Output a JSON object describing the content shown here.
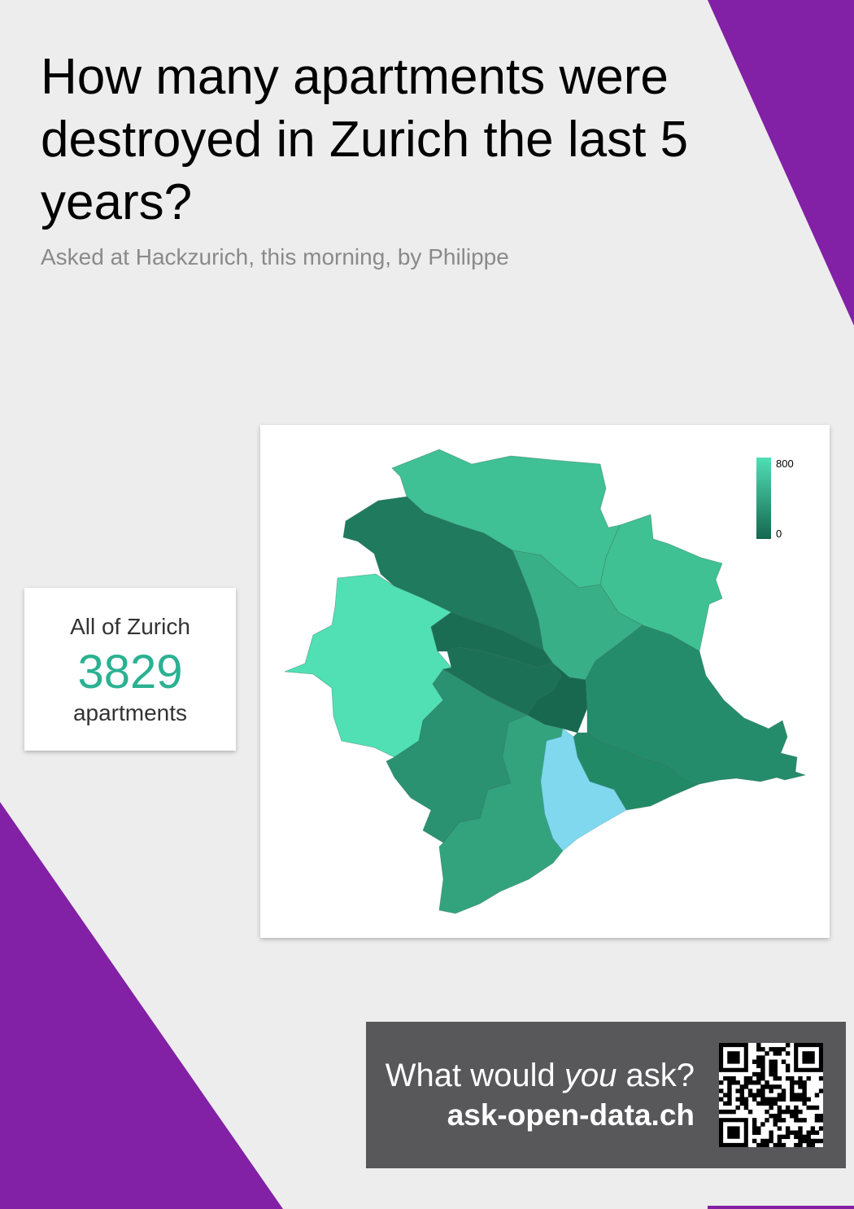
{
  "header": {
    "title": "How many apartments were destroyed in Zurich the last 5 years?",
    "subtitle": "Asked at Hackzurich, this morning, by Philippe"
  },
  "summary": {
    "label": "All of Zurich",
    "value": "3829",
    "unit": "apartments",
    "value_color": "#2bb191"
  },
  "map": {
    "legend": {
      "max_label": "800",
      "min_label": "0",
      "max_color": "#4fe0b5",
      "min_color": "#15674f"
    },
    "lake_color": "#80d8ef"
  },
  "cta": {
    "question_prefix": "What would ",
    "question_emphasis": "you",
    "question_suffix": " ask?",
    "url": "ask-open-data.ch",
    "qr_icon": "qr-code-icon"
  },
  "colors": {
    "background": "#ededed",
    "accent": "#8221a5",
    "cta_background": "#58585a"
  }
}
